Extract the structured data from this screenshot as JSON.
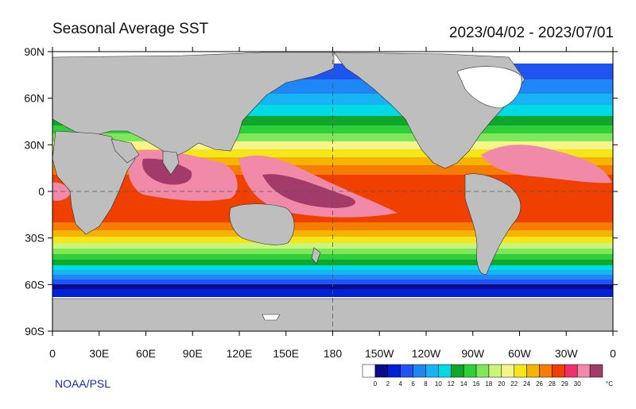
{
  "title": "Seasonal Average SST",
  "date_range": "2023/04/02 - 2023/07/01",
  "credit": "NOAA/PSL",
  "lat_labels": [
    "90N",
    "60N",
    "30N",
    "0",
    "30S",
    "60S",
    "90S"
  ],
  "lon_labels": [
    "0",
    "30E",
    "60E",
    "90E",
    "120E",
    "150E",
    "180",
    "150W",
    "120W",
    "90W",
    "60W",
    "30W",
    "0"
  ],
  "colorbar": {
    "unit": "°C",
    "labels": [
      "0",
      "2",
      "4",
      "6",
      "8",
      "10",
      "12",
      "14",
      "16",
      "18",
      "20",
      "22",
      "24",
      "26",
      "28",
      "29",
      "30"
    ],
    "colors": [
      "#ffffff",
      "#0b0b8c",
      "#0020d8",
      "#1f54f0",
      "#1e86f5",
      "#17b3f2",
      "#00d9e6",
      "#0fa62b",
      "#2fcf3a",
      "#7fe85a",
      "#c8f57a",
      "#f5f58a",
      "#f5e61b",
      "#f5b400",
      "#f57e00",
      "#f04000",
      "#f0306a",
      "#f08aa8",
      "#a23a6a"
    ]
  },
  "colors": {
    "land": "#bebebe",
    "ocean_cold": "#0020d8",
    "ocean_warm": "#f04000"
  }
}
